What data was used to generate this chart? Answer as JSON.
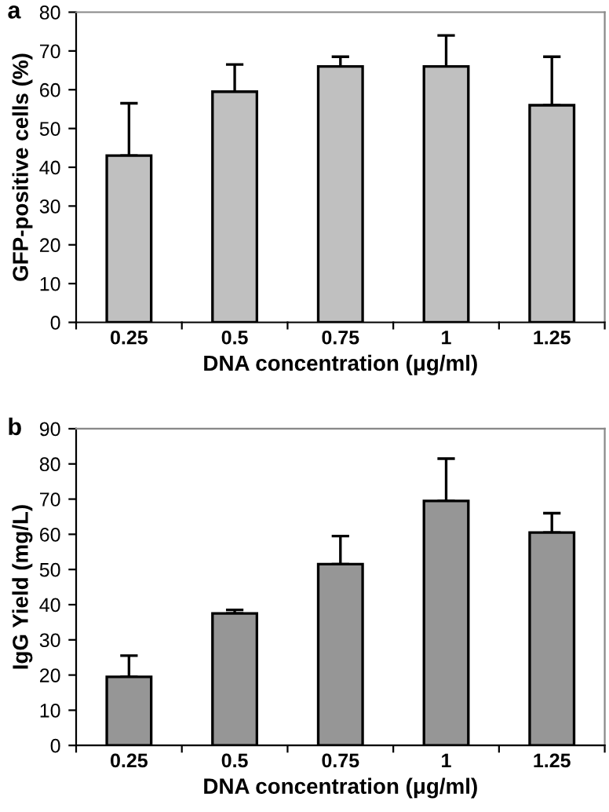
{
  "chart_data": [
    {
      "type": "bar",
      "title": "a",
      "xlabel": "DNA concentration (μg/ml)",
      "ylabel": "GFP-positive cells (%)",
      "categories": [
        "0.25",
        "0.5",
        "0.75",
        "1",
        "1.25"
      ],
      "values": [
        43,
        59.5,
        66,
        66,
        56
      ],
      "errors": [
        [
          43,
          56.5
        ],
        [
          59.5,
          66.5
        ],
        [
          66,
          68.5
        ],
        [
          66,
          74
        ],
        [
          56,
          68.5
        ]
      ],
      "color": "#c0c0c0",
      "ylim": [
        0,
        80
      ],
      "yticks": [
        0,
        10,
        20,
        30,
        40,
        50,
        60,
        70,
        80
      ],
      "grid": false,
      "legend": false
    },
    {
      "type": "bar",
      "title": "b",
      "xlabel": "DNA concentration (μg/ml)",
      "ylabel": "IgG Yield (mg/L)",
      "categories": [
        "0.25",
        "0.5",
        "0.75",
        "1",
        "1.25"
      ],
      "values": [
        19.5,
        37.5,
        51.5,
        69.5,
        60.5
      ],
      "errors": [
        [
          19.5,
          25.5
        ],
        [
          37.5,
          38.5
        ],
        [
          51.5,
          59.5
        ],
        [
          69.5,
          81.5
        ],
        [
          60.5,
          66
        ]
      ],
      "color": "#969696",
      "ylim": [
        0,
        90
      ],
      "yticks": [
        0,
        10,
        20,
        30,
        40,
        50,
        60,
        70,
        80,
        90
      ],
      "grid": false,
      "legend": false
    }
  ]
}
